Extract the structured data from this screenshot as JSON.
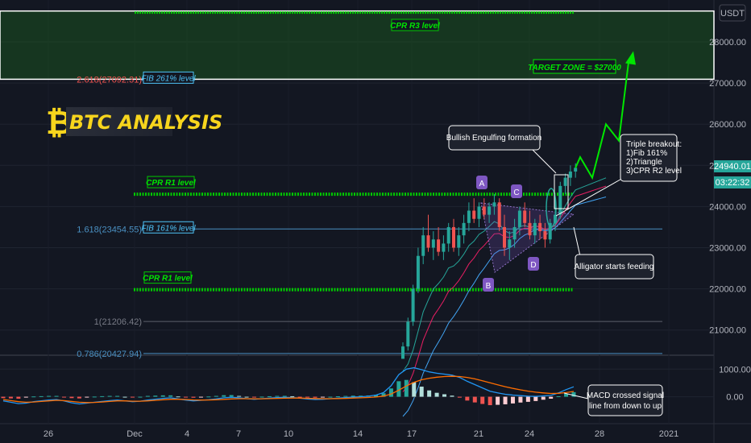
{
  "currency": "USDT",
  "title": "BTC ANALYSIS",
  "current_price": "24940.01",
  "countdown": "03:22:32",
  "colors": {
    "background": "#131722",
    "up": "#26a69a",
    "down": "#ef5350",
    "green_zone": "#1b5e20",
    "cpr": "#00c800",
    "fib": "#4a90c2",
    "logo": "#f7d51d"
  },
  "chart_data": [
    {
      "type": "candlestick",
      "x_ticks": [
        "26",
        "Dec",
        "4",
        "7",
        "10",
        "14",
        "17",
        "21",
        "24",
        "28",
        "2021"
      ],
      "y_ticks": [
        "28000.00",
        "27000.00",
        "26000.00",
        "25000.00",
        "24000.00",
        "23000.00",
        "22000.00",
        "21000.00"
      ],
      "ylim": [
        20500,
        28800
      ],
      "levels": [
        {
          "label": "CPR R3 level",
          "value": 28750
        },
        {
          "label": "CPR R1 level",
          "value": 24300
        },
        {
          "label": "CPR R1 level",
          "value": 21980
        }
      ],
      "fib_levels": [
        {
          "label": "2.618(27092.31)",
          "tag": "FIB 261% level",
          "value": 27092.31
        },
        {
          "label": "1.618(23454.55)",
          "tag": "FIB 161% level",
          "value": 23454.55
        },
        {
          "label": "1(21206.42)",
          "value": 21206.42
        },
        {
          "label": "0.786(20427.94)",
          "value": 20427.94
        }
      ],
      "pattern_points": [
        "A",
        "B",
        "C",
        "D"
      ],
      "annotations": [
        "TARGET ZONE = $27000",
        "Bullish Engulfing formation",
        "Triple breakout:",
        "1)Fib 161%",
        "2)Triangle",
        "3)CPR R2 level",
        "Alligator starts feeding"
      ],
      "candles": [
        {
          "o": 20300,
          "h": 20700,
          "l": 20300,
          "c": 20600
        },
        {
          "o": 20600,
          "h": 21300,
          "l": 20500,
          "c": 21200
        },
        {
          "o": 21200,
          "h": 22100,
          "l": 21100,
          "c": 22000
        },
        {
          "o": 22000,
          "h": 23000,
          "l": 21900,
          "c": 22800
        },
        {
          "o": 22800,
          "h": 23500,
          "l": 22600,
          "c": 23300
        },
        {
          "o": 23300,
          "h": 23800,
          "l": 22900,
          "c": 23000
        },
        {
          "o": 23000,
          "h": 23400,
          "l": 22700,
          "c": 23200
        },
        {
          "o": 23200,
          "h": 23500,
          "l": 22800,
          "c": 22900
        },
        {
          "o": 22900,
          "h": 23300,
          "l": 22700,
          "c": 23100
        },
        {
          "o": 23100,
          "h": 23600,
          "l": 22900,
          "c": 23500
        },
        {
          "o": 23500,
          "h": 23700,
          "l": 22900,
          "c": 23000
        },
        {
          "o": 23000,
          "h": 23500,
          "l": 22800,
          "c": 23300
        },
        {
          "o": 23300,
          "h": 23800,
          "l": 23100,
          "c": 23600
        },
        {
          "o": 23600,
          "h": 24100,
          "l": 23400,
          "c": 23900
        },
        {
          "o": 23900,
          "h": 24200,
          "l": 23600,
          "c": 23700
        },
        {
          "o": 23700,
          "h": 24100,
          "l": 23500,
          "c": 24000
        },
        {
          "o": 24000,
          "h": 24200,
          "l": 23700,
          "c": 23800
        },
        {
          "o": 23800,
          "h": 24100,
          "l": 23600,
          "c": 24000
        },
        {
          "o": 24000,
          "h": 24300,
          "l": 23800,
          "c": 24100
        },
        {
          "o": 24100,
          "h": 24200,
          "l": 23400,
          "c": 23500
        },
        {
          "o": 23500,
          "h": 23800,
          "l": 22800,
          "c": 23000
        },
        {
          "o": 23000,
          "h": 23400,
          "l": 22700,
          "c": 23200
        },
        {
          "o": 23200,
          "h": 23700,
          "l": 23000,
          "c": 23500
        },
        {
          "o": 23500,
          "h": 24000,
          "l": 23300,
          "c": 23900
        },
        {
          "o": 23900,
          "h": 24100,
          "l": 23500,
          "c": 23600
        },
        {
          "o": 23600,
          "h": 23900,
          "l": 23200,
          "c": 23300
        },
        {
          "o": 23300,
          "h": 23700,
          "l": 23100,
          "c": 23600
        },
        {
          "o": 23600,
          "h": 23800,
          "l": 23200,
          "c": 23400
        },
        {
          "o": 23400,
          "h": 23600,
          "l": 23000,
          "c": 23200
        },
        {
          "o": 23200,
          "h": 23700,
          "l": 23100,
          "c": 23600
        },
        {
          "o": 23600,
          "h": 24200,
          "l": 23400,
          "c": 23800
        },
        {
          "o": 23800,
          "h": 24600,
          "l": 23700,
          "c": 24500
        },
        {
          "o": 24500,
          "h": 24800,
          "l": 24300,
          "c": 24700
        },
        {
          "o": 24700,
          "h": 25000,
          "l": 24500,
          "c": 24850
        },
        {
          "o": 24850,
          "h": 25050,
          "l": 24700,
          "c": 24940
        }
      ],
      "projection": [
        24940,
        25200,
        24700,
        26000,
        25600,
        27500
      ],
      "macd": {
        "ylim": [
          -800,
          1300
        ],
        "y_ticks": [
          "1000.00",
          "0.00"
        ],
        "macd_line": [
          -150,
          -200,
          -250,
          -230,
          -180,
          -150,
          -120,
          -100,
          -150,
          -220,
          -260,
          -230,
          -200,
          -170,
          -140,
          -120,
          -150,
          -180,
          -160,
          -120,
          -90,
          -60,
          -40,
          -80,
          -120,
          -150,
          -130,
          -110,
          -80,
          -40,
          -20,
          -40,
          -70,
          -90,
          -70,
          -50,
          -30,
          -20,
          -30,
          -50,
          -80,
          -100,
          -90,
          -70,
          -50,
          -30,
          -10,
          0,
          20,
          60,
          150,
          400,
          800,
          1000,
          1050,
          980,
          900,
          850,
          820,
          780,
          700,
          560,
          440,
          320,
          200,
          140,
          90,
          60,
          40,
          20,
          10,
          30,
          50,
          140,
          260,
          360
        ],
        "signal_line": [
          -100,
          -140,
          -180,
          -200,
          -190,
          -170,
          -150,
          -130,
          -140,
          -170,
          -200,
          -210,
          -205,
          -190,
          -170,
          -150,
          -150,
          -160,
          -160,
          -150,
          -130,
          -110,
          -90,
          -90,
          -100,
          -115,
          -120,
          -118,
          -110,
          -95,
          -80,
          -70,
          -70,
          -75,
          -73,
          -68,
          -60,
          -52,
          -48,
          -48,
          -55,
          -65,
          -70,
          -70,
          -66,
          -58,
          -48,
          -38,
          -26,
          -9,
          23,
          99,
          239,
          391,
          523,
          614,
          671,
          707,
          730,
          740,
          732,
          698,
          646,
          581,
          505,
          432,
          364,
          303,
          250,
          204,
          165,
          138,
          120,
          124,
          151,
          193
        ],
        "histogram": [
          -50,
          -60,
          -70,
          -30,
          10,
          20,
          30,
          30,
          -10,
          -50,
          -60,
          -20,
          5,
          20,
          30,
          30,
          0,
          -20,
          0,
          30,
          40,
          50,
          50,
          10,
          -20,
          -35,
          -10,
          8,
          30,
          55,
          60,
          30,
          0,
          -15,
          3,
          18,
          30,
          32,
          18,
          -2,
          -25,
          -35,
          -20,
          0,
          16,
          28,
          38,
          38,
          46,
          69,
          127,
          301,
          561,
          609,
          527,
          366,
          229,
          143,
          90,
          40,
          -32,
          -138,
          -206,
          -261,
          -305,
          -292,
          -274,
          -243,
          -210,
          -184,
          -155,
          -108,
          -70,
          16,
          109,
          167
        ]
      }
    }
  ],
  "macd_note": [
    "MACD crossed signal",
    "line from down to up"
  ]
}
